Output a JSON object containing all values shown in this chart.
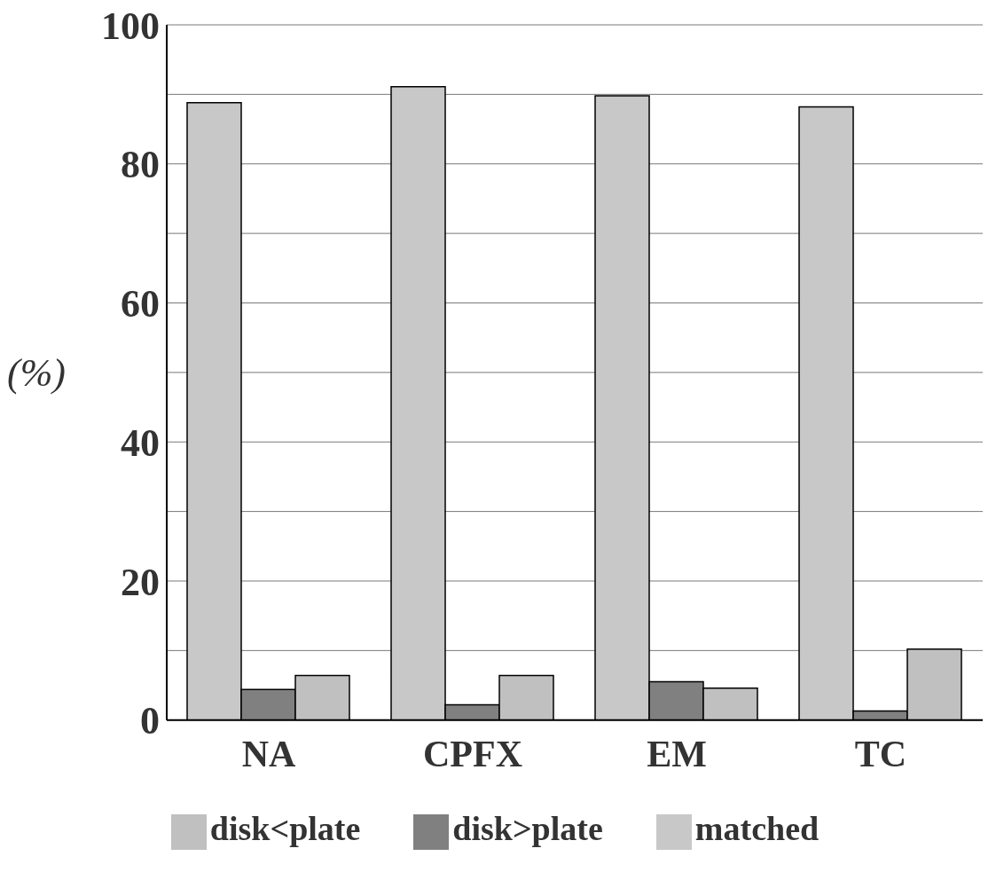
{
  "chart_data": {
    "type": "bar",
    "ylabel": "(%)",
    "categories": [
      "NA",
      "CPFX",
      "EM",
      "TC"
    ],
    "series": [
      {
        "name": "matched",
        "color": "#c8c8c8",
        "values": [
          88.8,
          91.1,
          89.8,
          88.2
        ]
      },
      {
        "name": "disk>plate",
        "color": "#808080",
        "values": [
          4.4,
          2.2,
          5.5,
          1.3
        ]
      },
      {
        "name": "disk<plate",
        "color": "#c0c0c0",
        "values": [
          6.4,
          6.4,
          4.6,
          10.2
        ]
      }
    ],
    "ylim": [
      0,
      100
    ],
    "yticks": [
      0,
      {
        "value": 10,
        "label": null
      },
      20,
      {
        "value": 30,
        "label": null
      },
      40,
      {
        "value": 50,
        "label": null
      },
      60,
      {
        "value": 70,
        "label": null
      },
      80,
      {
        "value": 90,
        "label": null
      },
      100
    ],
    "grid": "y",
    "legend": "bottom"
  }
}
